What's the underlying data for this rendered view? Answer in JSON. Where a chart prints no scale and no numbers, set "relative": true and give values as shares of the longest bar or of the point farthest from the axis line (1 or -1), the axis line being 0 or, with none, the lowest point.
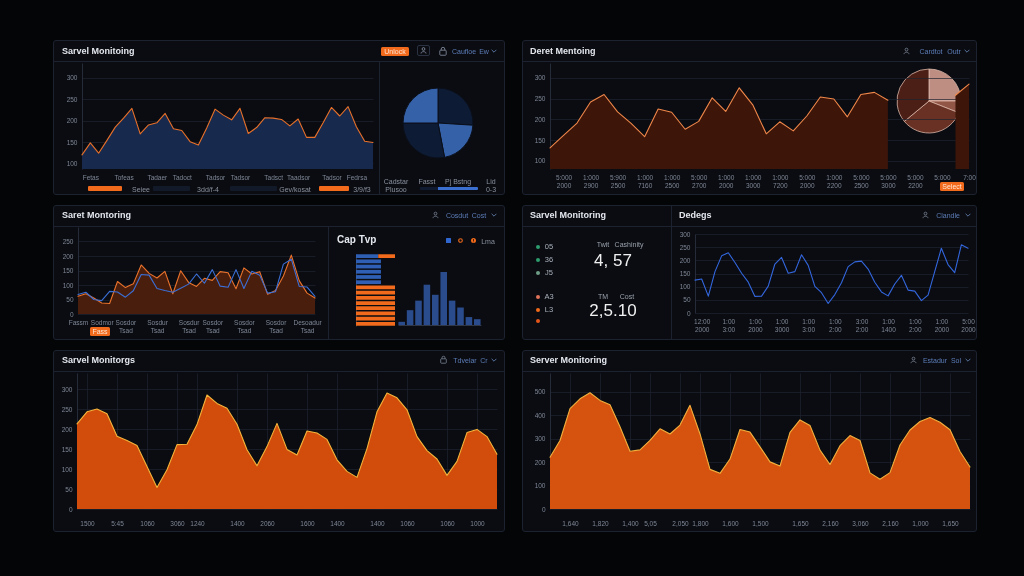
{
  "chart_data": [
    {
      "type": "area",
      "title": "Sarvel Monitoing",
      "categories": [
        null,
        "Fetas",
        null,
        null,
        null,
        "Tofeas",
        null,
        null,
        null,
        "Tadaer",
        null,
        null,
        "Tadoct",
        null,
        null,
        null,
        "Tadsor",
        null,
        null,
        "Tadsor",
        null,
        null,
        null,
        "Tadsct",
        null,
        null,
        "Taadsor",
        null,
        null,
        null,
        "Tadsor",
        null,
        null,
        "Fedrsa",
        null,
        null
      ],
      "series": [
        {
          "type": "area",
          "color": "#172a4d",
          "values": [
            120,
            148,
            124,
            154,
            185,
            206,
            229,
            169,
            190,
            195,
            217,
            181,
            177,
            151,
            143,
            183,
            227,
            213,
            202,
            229,
            170,
            184,
            207,
            206,
            203,
            188,
            204,
            161,
            161,
            195,
            231,
            211,
            233,
            186,
            152,
            149
          ]
        },
        {
          "type": "line",
          "color": "#e8702a",
          "values": [
            120,
            148,
            124,
            154,
            185,
            206,
            229,
            169,
            190,
            195,
            217,
            181,
            177,
            151,
            143,
            183,
            227,
            213,
            202,
            229,
            170,
            184,
            207,
            206,
            203,
            188,
            204,
            161,
            161,
            195,
            231,
            211,
            233,
            186,
            152,
            149
          ]
        }
      ],
      "ylim": [
        87,
        335
      ],
      "yticks": [
        100,
        150,
        200,
        250,
        300
      ],
      "grid": "y",
      "annotations": [
        "Unlock",
        "Caufloe",
        "Ew",
        "Seiee",
        "3dd/f-4",
        "Gev/kosat",
        "3/9/f3"
      ]
    },
    {
      "type": "pie",
      "categories": [
        null,
        null,
        null,
        null
      ],
      "values": [
        26,
        21,
        28,
        25
      ],
      "colors": [
        "#0e1b35",
        "#3561a8",
        "#0e1b35",
        "#3561a8"
      ],
      "annotations": [
        "Cadstar",
        "Plusoo",
        "Fasst",
        "Pj Bstng",
        "Lid",
        "0-3"
      ]
    },
    {
      "type": "area",
      "title": "Deret Mentoing",
      "categories": [
        null,
        "5:000 2000",
        null,
        "1:000 2900",
        null,
        "5:900 2500",
        null,
        "1:000 7160",
        null,
        "1:000 2500",
        null,
        "5:000 2700",
        null,
        "1:000 2000",
        null,
        "1:000 3000",
        null,
        "1:000 7200",
        null,
        "5:000 2000",
        null,
        "1:000 2200",
        null,
        "5:000 2500",
        null,
        "5:000 3000",
        null,
        "5:000 2200",
        null,
        "5:000",
        null,
        "7:00"
      ],
      "series": [
        {
          "type": "area",
          "color": "#3d1609",
          "values": [
            131,
            161,
            191,
            242,
            260,
            218,
            190,
            158,
            225,
            217,
            176,
            195,
            252,
            219,
            276,
            235,
            165,
            194,
            172,
            208,
            254,
            249,
            206,
            260,
            265,
            246,
            null,
            null,
            null,
            null,
            258,
            285
          ]
        }
      ],
      "ylim": [
        80,
        336
      ],
      "yticks": [
        100,
        150,
        200,
        250,
        300
      ],
      "grid": "y",
      "annotations": [
        "Cardtot",
        "Outr",
        "Select"
      ]
    },
    {
      "type": "pie",
      "categories": [
        null,
        null,
        null,
        null
      ],
      "values": [
        25,
        6,
        33,
        36
      ],
      "colors": [
        "#c9968a",
        "#9a5a4a",
        "#6e3324",
        "#4f2117"
      ]
    },
    {
      "type": "line",
      "title": "Saret Montoring",
      "categories": [
        "Fassm",
        null,
        null,
        "Sodmor Tsad",
        null,
        null,
        "Sosdor Tsad",
        null,
        null,
        null,
        "Sosdur Tsad",
        null,
        null,
        null,
        "Sosdur Tsad",
        null,
        null,
        "Sosdor Tsad",
        null,
        null,
        null,
        "Sosdor Tsad",
        null,
        null,
        null,
        "Sosdor Tsad",
        null,
        null,
        null,
        "Desoadur Tsad",
        null
      ],
      "series": [
        {
          "type": "area",
          "color": "#4a1e0c",
          "values": [
            61,
            70,
            55,
            38,
            36,
            112,
            91,
            104,
            169,
            140,
            124,
            147,
            70,
            149,
            109,
            95,
            123,
            116,
            146,
            142,
            87,
            159,
            138,
            146,
            68,
            81,
            131,
            203,
            115,
            72,
            55
          ]
        },
        {
          "type": "line",
          "color": "#3b6fd6",
          "values": [
            67,
            75,
            50,
            46,
            78,
            76,
            58,
            80,
            136,
            134,
            88,
            81,
            75,
            89,
            103,
            138,
            106,
            153,
            96,
            92,
            153,
            88,
            147,
            134,
            72,
            77,
            172,
            189,
            95,
            93,
            61
          ]
        }
      ],
      "ylim": [
        0,
        300
      ],
      "yticks": [
        0,
        50,
        100,
        150,
        200,
        250
      ],
      "grid": "y",
      "annotations": [
        "Cosdut",
        "Cost",
        "Fass"
      ]
    },
    {
      "type": "bar",
      "title": "Cap Tvp",
      "orientation": "horizontal",
      "stacked": true,
      "relative": true,
      "categories": [
        null,
        null,
        null,
        null,
        null,
        null,
        null,
        null,
        null,
        null,
        null,
        null,
        null,
        null
      ],
      "series": [
        {
          "color": "#2f5fb5",
          "values": [
            0.57,
            0.64,
            0.64,
            0.64,
            0.64,
            0.64,
            null,
            null,
            null,
            null,
            null,
            null,
            null,
            null
          ]
        },
        {
          "color": "#f26a1b",
          "values": [
            0.43,
            null,
            null,
            null,
            null,
            null,
            1,
            1,
            1,
            1,
            1,
            1,
            1,
            1
          ]
        }
      ]
    },
    {
      "type": "bar",
      "relative": true,
      "categories": [
        null,
        null,
        null,
        null,
        null,
        null,
        null,
        null,
        null,
        null
      ],
      "values": [
        0.06,
        0.28,
        0.46,
        0.76,
        0.57,
        1,
        0.46,
        0.33,
        0.15,
        0.11
      ],
      "color": "#2b4c8c",
      "annotations": [
        "Lma"
      ]
    },
    {
      "type": "other",
      "title": "Sarvel Monitoring",
      "annotations": [
        "05",
        "36",
        "J5",
        "Twit",
        "Cashinity",
        "4, 57",
        "A3",
        "L3",
        "TM",
        "Cost",
        "2,5.10"
      ]
    },
    {
      "type": "line",
      "title": "Dedegs",
      "categories": [
        null,
        "12:00 2000",
        null,
        null,
        null,
        "1:00 3:00",
        null,
        null,
        null,
        "1:00 2000",
        null,
        null,
        null,
        "1:00 3000",
        null,
        null,
        null,
        "1:00 3:00",
        null,
        null,
        null,
        "1:00 2:00",
        null,
        null,
        null,
        "3:00 2:00",
        null,
        null,
        null,
        "1:00 1400",
        null,
        null,
        null,
        "1:00 2:00",
        null,
        null,
        null,
        "1:00 2000",
        null,
        null,
        null,
        "5:00 2000"
      ],
      "series": [
        {
          "color": "#3366dd",
          "values": [
            125,
            129,
            64,
            157,
            217,
            229,
            192,
            151,
            117,
            63,
            64,
            102,
            186,
            211,
            151,
            157,
            221,
            181,
            101,
            77,
            36,
            70,
            115,
            176,
            194,
            197,
            167,
            117,
            80,
            65,
            110,
            143,
            87,
            83,
            47,
            68,
            157,
            246,
            184,
            153,
            259,
            246
          ]
        }
      ],
      "ylim": [
        0,
        300
      ],
      "yticks": [
        0,
        50,
        100,
        150,
        200,
        250,
        300
      ],
      "grid": "y",
      "annotations": [
        "Clandle"
      ]
    },
    {
      "type": "area",
      "title": "Sarvel Monitorgs",
      "categories": [
        null,
        "1500",
        null,
        null,
        "5:45",
        null,
        null,
        "1060",
        null,
        null,
        "3060",
        null,
        "1240",
        null,
        null,
        null,
        "1400",
        null,
        null,
        "2060",
        null,
        null,
        null,
        "1600",
        null,
        null,
        "1400",
        null,
        null,
        null,
        "1400",
        null,
        null,
        "1060",
        null,
        null,
        null,
        "1060",
        null,
        null,
        "1000",
        null,
        null
      ],
      "series": [
        {
          "type": "area",
          "color": "#d24d0c",
          "values": [
            213,
            243,
            250,
            238,
            182,
            171,
            159,
            106,
            54,
            98,
            161,
            162,
            211,
            285,
            264,
            252,
            212,
            148,
            108,
            156,
            214,
            149,
            135,
            195,
            190,
            174,
            123,
            94,
            79,
            151,
            243,
            290,
            278,
            248,
            181,
            146,
            125,
            84,
            119,
            191,
            199,
            181,
            137
          ]
        }
      ],
      "ylim": [
        0,
        340
      ],
      "yticks": [
        0,
        50,
        100,
        150,
        200,
        250,
        300
      ],
      "grid": true,
      "annotations": [
        "Tdvelar",
        "Cr"
      ]
    },
    {
      "type": "area",
      "title": "Server Monitoring",
      "categories": [
        null,
        null,
        "1,640",
        null,
        null,
        "1,820",
        null,
        null,
        "1,400",
        null,
        "5,05",
        null,
        null,
        "2,050",
        null,
        "1,800",
        null,
        null,
        "1,600",
        null,
        null,
        "1,500",
        null,
        null,
        null,
        "1,650",
        null,
        null,
        "2,160",
        null,
        null,
        "3,060",
        null,
        null,
        "2,160",
        null,
        null,
        "1,000",
        null,
        null,
        "1,650",
        null,
        null
      ],
      "series": [
        {
          "type": "area",
          "color": "#d6530f",
          "values": [
            221,
            292,
            428,
            470,
            496,
            463,
            445,
            351,
            246,
            252,
            293,
            342,
            320,
            358,
            442,
            320,
            169,
            152,
            213,
            339,
            328,
            265,
            201,
            183,
            327,
            380,
            356,
            251,
            190,
            270,
            313,
            292,
            154,
            127,
            155,
            273,
            337,
            373,
            390,
            370,
            338,
            245,
            179
          ]
        }
      ],
      "ylim": [
        0,
        580
      ],
      "yticks": [
        0,
        100,
        200,
        300,
        400,
        500
      ],
      "grid": true,
      "annotations": [
        "Estadur",
        "Sol"
      ]
    }
  ]
}
